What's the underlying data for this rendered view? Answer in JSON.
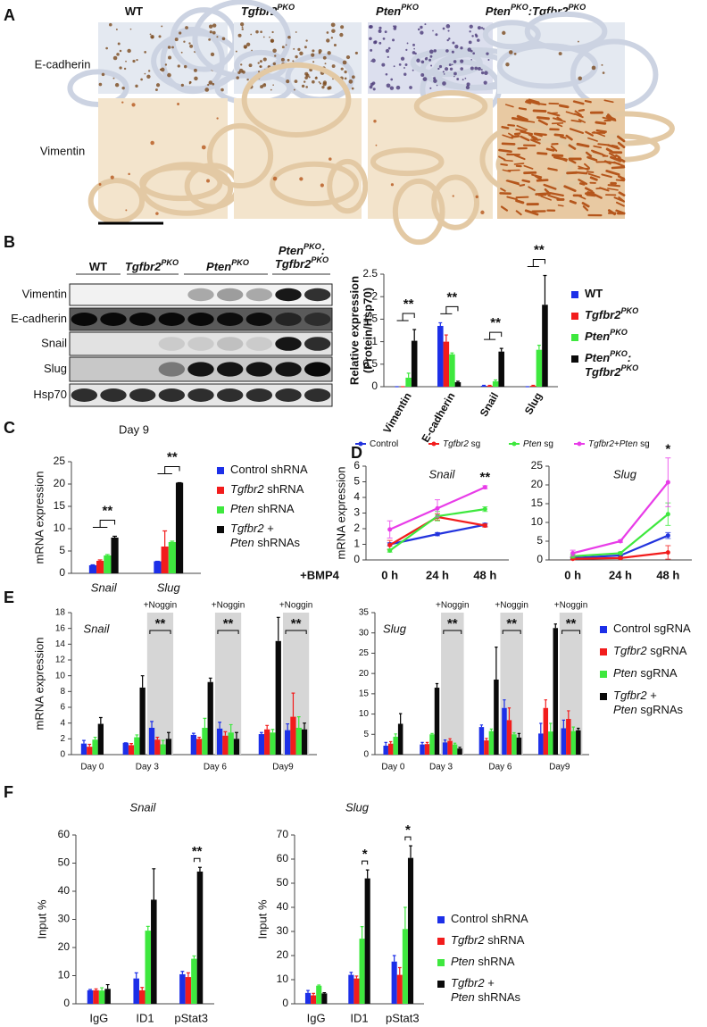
{
  "figure": {
    "panels": [
      "A",
      "B",
      "C",
      "D",
      "E",
      "F"
    ],
    "micrographs": {
      "columns": [
        [
          {
            "t": "WT"
          }
        ],
        [
          {
            "t": "Tgfbr2",
            "i": true
          },
          {
            "t": "PKO",
            "sup": true,
            "i": true
          }
        ],
        [
          {
            "t": "Pten",
            "i": true
          },
          {
            "t": "PKO",
            "sup": true,
            "i": true
          }
        ],
        [
          {
            "t": "Pten",
            "i": true
          },
          {
            "t": "PKO",
            "sup": true,
            "i": true
          },
          {
            "t": ":Tgfbr2",
            "i": true
          },
          {
            "t": "PKO",
            "sup": true,
            "i": true
          }
        ]
      ],
      "rows": [
        "E-cadherin",
        "Vimentin"
      ]
    },
    "blot": {
      "columns": [
        [
          {
            "t": "WT"
          }
        ],
        [
          {
            "t": "Tgfbr2",
            "i": true
          },
          {
            "t": "PKO",
            "sup": true,
            "i": true
          }
        ],
        [
          {
            "t": "Pten",
            "i": true
          },
          {
            "t": "PKO",
            "sup": true,
            "i": true
          }
        ],
        [
          {
            "t": "Pten",
            "i": true
          },
          {
            "t": "PKO",
            "sup": true,
            "i": true
          },
          {
            "t": ":",
            "i": true
          },
          {
            "t": "Tgfbr2",
            "i": true,
            "nl": true
          },
          {
            "t": "PKO",
            "sup": true,
            "i": true
          }
        ]
      ],
      "rows": [
        "Vimentin",
        "E-cadherin",
        "Snail",
        "Slug",
        "Hsp70"
      ]
    }
  },
  "chart_data": [
    {
      "type": "bar",
      "ylabel": [
        "Relative expression",
        "(Protein/Hsp70)"
      ],
      "categories": [
        "Vimentin",
        "E-cadherin",
        "Snail",
        "Slug"
      ],
      "ylim": [
        0,
        2.5
      ],
      "yticks": [
        0,
        0.5,
        1,
        1.5,
        2,
        2.5
      ],
      "series": [
        {
          "name": [
            {
              "t": "WT"
            }
          ],
          "color": "#1c2fe8",
          "values": [
            0,
            1.35,
            0.02,
            0
          ],
          "errors": [
            0,
            0.07,
            0.01,
            0
          ]
        },
        {
          "name": [
            {
              "t": "Tgfbr2",
              "i": true
            },
            {
              "t": "PKO",
              "sup": true,
              "i": true
            }
          ],
          "color": "#f21c1c",
          "values": [
            0,
            1.0,
            0.02,
            0.02
          ],
          "errors": [
            0,
            0.15,
            0.01,
            0.01
          ]
        },
        {
          "name": [
            {
              "t": "Pten",
              "i": true
            },
            {
              "t": "PKO",
              "sup": true,
              "i": true
            }
          ],
          "color": "#3ee83e",
          "values": [
            0.2,
            0.72,
            0.12,
            0.82
          ],
          "errors": [
            0.1,
            0.03,
            0.03,
            0.1
          ]
        },
        {
          "name": [
            {
              "t": "Pten",
              "i": true
            },
            {
              "t": "PKO",
              "sup": true,
              "i": true
            },
            {
              "t": ":",
              "i": true
            },
            {
              "t": "Tgfbr2",
              "i": true,
              "nl": true
            },
            {
              "t": "PKO",
              "sup": true,
              "i": true
            }
          ],
          "color": "#0a0a0a",
          "values": [
            1.02,
            0.1,
            0.78,
            1.82
          ],
          "errors": [
            0.25,
            0.02,
            0.07,
            0.65
          ]
        }
      ],
      "annotations": [
        {
          "text": "**",
          "category": 0
        },
        {
          "text": "**",
          "category": 1
        },
        {
          "text": "**",
          "category": 2
        },
        {
          "text": "**",
          "category": 3
        }
      ]
    },
    {
      "type": "bar",
      "title": "Day 9",
      "ylabel": "mRNA expression",
      "categories": [
        "Snail",
        "Slug"
      ],
      "ylim": [
        0,
        25
      ],
      "yticks": [
        0,
        5,
        10,
        15,
        20,
        25
      ],
      "series": [
        {
          "name": [
            {
              "t": "Control shRNA"
            }
          ],
          "color": "#1c2fe8",
          "values": [
            1.8,
            2.7
          ],
          "errors": [
            0.1,
            0
          ]
        },
        {
          "name": [
            {
              "t": "Tgfbr2",
              "i": true
            },
            {
              "t": " shRNA"
            }
          ],
          "color": "#f21c1c",
          "values": [
            2.8,
            6.0
          ],
          "errors": [
            0.2,
            3.5
          ]
        },
        {
          "name": [
            {
              "t": "Pten",
              "i": true
            },
            {
              "t": " shRNA"
            }
          ],
          "color": "#3ee83e",
          "values": [
            4.0,
            7.0
          ],
          "errors": [
            0.2,
            0.2
          ]
        },
        {
          "name": [
            {
              "t": "Tgfbr2",
              "i": true
            },
            {
              "t": " +"
            },
            {
              "t": "Pten",
              "i": true,
              "nl": true
            },
            {
              "t": " shRNAs"
            }
          ],
          "color": "#0a0a0a",
          "values": [
            8.0,
            20.3
          ],
          "errors": [
            0.3,
            0
          ]
        }
      ],
      "annotations": [
        {
          "text": "**",
          "category": 0
        },
        {
          "text": "**",
          "category": 1
        }
      ]
    },
    {
      "type": "line",
      "title": "Snail",
      "ylabel": "mRNA expression",
      "xlabel": "+BMP4",
      "categories": [
        "0 h",
        "24 h",
        "48 h"
      ],
      "ylim": [
        0,
        6
      ],
      "yticks": [
        0,
        1,
        2,
        3,
        4,
        5,
        6
      ],
      "series": [
        {
          "name": [
            {
              "t": "Control"
            }
          ],
          "color": "#2233dd",
          "values": [
            1.0,
            1.65,
            2.25
          ],
          "errors": [
            0.1,
            0.1,
            0.1
          ]
        },
        {
          "name": [
            {
              "t": "Tgfbr2",
              "i": true
            },
            {
              "t": " sg"
            }
          ],
          "color": "#f21c1c",
          "values": [
            0.95,
            2.75,
            2.2
          ],
          "errors": [
            0.3,
            0.2,
            0.1
          ]
        },
        {
          "name": [
            {
              "t": "Pten",
              "i": true
            },
            {
              "t": " sg"
            }
          ],
          "color": "#3ee83e",
          "values": [
            0.6,
            2.8,
            3.25
          ],
          "errors": [
            0.1,
            0.3,
            0.15
          ]
        },
        {
          "name": [
            {
              "t": "Tgfbr2+Pten",
              "i": true
            },
            {
              "t": " sg"
            }
          ],
          "color": "#e83ce8",
          "values": [
            1.95,
            3.3,
            4.65
          ],
          "errors": [
            0.55,
            0.55,
            0.1
          ]
        }
      ],
      "annotations": [
        {
          "text": "**",
          "category": 2
        }
      ]
    },
    {
      "type": "line",
      "title": "Slug",
      "categories": [
        "0 h",
        "24 h",
        "48 h"
      ],
      "ylim": [
        0,
        25
      ],
      "yticks": [
        0,
        5,
        10,
        15,
        20,
        25
      ],
      "series": [
        {
          "color": "#2233dd",
          "values": [
            0.5,
            1.2,
            6.5
          ],
          "errors": [
            0.3,
            0.2,
            0.8
          ]
        },
        {
          "color": "#f21c1c",
          "values": [
            0.3,
            0.5,
            2.0
          ],
          "errors": [
            0.3,
            0.2,
            1.8
          ]
        },
        {
          "color": "#3ee83e",
          "values": [
            1.0,
            1.8,
            12.2
          ],
          "errors": [
            0.5,
            0.3,
            3
          ]
        },
        {
          "color": "#e83ce8",
          "values": [
            1.8,
            5,
            20.7
          ],
          "errors": [
            0.8,
            0.3,
            6.5
          ]
        }
      ],
      "annotations": [
        {
          "text": "*",
          "category": 2
        }
      ]
    },
    {
      "type": "bar",
      "title": "Snail",
      "ylabel": "mRNA expression",
      "categories": [
        "Day 0",
        "Day 3",
        null,
        "Day 6",
        null,
        "Day9",
        null
      ],
      "ylim": [
        0,
        18
      ],
      "yticks": [
        0,
        2,
        4,
        6,
        8,
        10,
        12,
        14,
        16,
        18
      ],
      "series": [
        {
          "color": "#1c2fe8",
          "values": [
            1.4,
            1.5,
            3.4,
            2.5,
            3.3,
            2.6,
            3.1
          ],
          "errors": [
            0.4,
            0,
            0.8,
            0.2,
            0.8,
            0.2,
            0.8
          ]
        },
        {
          "color": "#f21c1c",
          "values": [
            1.0,
            1.2,
            1.9,
            2.0,
            2.4,
            3.2,
            4.8
          ],
          "errors": [
            0.3,
            0.2,
            0.3,
            0.2,
            0.5,
            0.5,
            3.0
          ]
        },
        {
          "color": "#3ee83e",
          "values": [
            1.9,
            2.2,
            1.3,
            3.4,
            2.8,
            2.8,
            3.4
          ],
          "errors": [
            0.3,
            0.3,
            0.5,
            1.2,
            1.0,
            0.4,
            1.4
          ]
        },
        {
          "color": "#0a0a0a",
          "values": [
            3.9,
            8.5,
            2.0,
            9.2,
            2.0,
            14.4,
            3.2
          ],
          "errors": [
            0.8,
            1.5,
            0.8,
            0.5,
            0.8,
            3.0,
            0.8
          ]
        }
      ],
      "shaded": [
        {
          "category": 2,
          "label": "+Noggin",
          "mark": "**"
        },
        {
          "category": 4,
          "label": "+Noggin",
          "mark": "**"
        },
        {
          "category": 6,
          "label": "+Noggin",
          "mark": "**"
        }
      ]
    },
    {
      "type": "bar",
      "title": "Slug",
      "categories": [
        "Day 0",
        "Day 3",
        null,
        "Day 6",
        null,
        "Day9",
        null
      ],
      "ylim": [
        0,
        35
      ],
      "yticks": [
        0,
        5,
        10,
        15,
        20,
        25,
        30,
        35
      ],
      "series": [
        {
          "name": [
            {
              "t": "Control sgRNA"
            }
          ],
          "color": "#1c2fe8",
          "values": [
            2.2,
            2.5,
            3.0,
            6.8,
            11.5,
            5.2,
            6.5
          ],
          "errors": [
            0.8,
            0.5,
            0.6,
            0.5,
            2,
            2.5,
            2
          ]
        },
        {
          "name": [
            {
              "t": "Tgfbr2",
              "i": true
            },
            {
              "t": " sgRNA"
            }
          ],
          "color": "#f21c1c",
          "values": [
            2.7,
            2.6,
            3.4,
            3.5,
            8.5,
            11.5,
            8.8
          ],
          "errors": [
            0.5,
            0.4,
            0.5,
            0.5,
            3,
            2,
            2
          ]
        },
        {
          "name": [
            {
              "t": "Pten",
              "i": true
            },
            {
              "t": " sgRNA"
            }
          ],
          "color": "#3ee83e",
          "values": [
            4.4,
            5.0,
            2.5,
            5.8,
            5.0,
            5.7,
            5.8
          ],
          "errors": [
            0.7,
            0.2,
            0.3,
            0.5,
            0.4,
            2,
            1
          ]
        },
        {
          "name": [
            {
              "t": "Tgfbr2",
              "i": true
            },
            {
              "t": " +"
            },
            {
              "t": "Pten",
              "i": true,
              "nl": true
            },
            {
              "t": " sgRNAs"
            }
          ],
          "color": "#0a0a0a",
          "values": [
            7.6,
            16.5,
            1.5,
            18.5,
            4.2,
            31.2,
            6.0
          ],
          "errors": [
            2.5,
            1.0,
            0.3,
            8,
            1,
            1,
            0.5
          ]
        }
      ],
      "shaded": [
        {
          "category": 2,
          "label": "+Noggin",
          "mark": "**"
        },
        {
          "category": 4,
          "label": "+Noggin",
          "mark": "**"
        },
        {
          "category": 6,
          "label": "+Noggin",
          "mark": "**"
        }
      ]
    },
    {
      "type": "bar",
      "title": "Snail",
      "ylabel": "Input %",
      "categories": [
        "IgG",
        "ID1",
        "pStat3"
      ],
      "ylim": [
        0,
        60
      ],
      "yticks": [
        0,
        10,
        20,
        30,
        40,
        50,
        60
      ],
      "series": [
        {
          "color": "#1c2fe8",
          "values": [
            4.8,
            9.0,
            10.5
          ],
          "errors": [
            0.3,
            2,
            1
          ]
        },
        {
          "color": "#f21c1c",
          "values": [
            4.8,
            4.8,
            9.5
          ],
          "errors": [
            0.5,
            1,
            1.5
          ]
        },
        {
          "color": "#3ee83e",
          "values": [
            4.7,
            26,
            16
          ],
          "errors": [
            1,
            1.5,
            1
          ]
        },
        {
          "color": "#0a0a0a",
          "values": [
            5.3,
            37,
            47
          ],
          "errors": [
            1.5,
            11,
            1.5
          ]
        }
      ],
      "annotations": [
        {
          "text": "**",
          "category": 2
        }
      ]
    },
    {
      "type": "bar",
      "title": "Slug",
      "ylabel": "Input %",
      "categories": [
        "IgG",
        "ID1",
        "pStat3"
      ],
      "ylim": [
        0,
        70
      ],
      "yticks": [
        0,
        10,
        20,
        30,
        40,
        50,
        60,
        70
      ],
      "series": [
        {
          "name": [
            {
              "t": "Control shRNA"
            }
          ],
          "color": "#1c2fe8",
          "values": [
            4.5,
            12,
            17.5
          ],
          "errors": [
            1,
            1,
            2.5
          ]
        },
        {
          "name": [
            {
              "t": "Tgfbr2",
              "i": true
            },
            {
              "t": " shRNA"
            }
          ],
          "color": "#f21c1c",
          "values": [
            3.5,
            10.5,
            12
          ],
          "errors": [
            0.8,
            1,
            3
          ]
        },
        {
          "name": [
            {
              "t": "Pten",
              "i": true
            },
            {
              "t": " shRNA"
            }
          ],
          "color": "#3ee83e",
          "values": [
            7.5,
            27,
            31
          ],
          "errors": [
            0.3,
            5,
            9
          ]
        },
        {
          "name": [
            {
              "t": "Tgfbr2",
              "i": true
            },
            {
              "t": " +"
            },
            {
              "t": "Pten",
              "i": true,
              "nl": true
            },
            {
              "t": " shRNAs"
            }
          ],
          "color": "#0a0a0a",
          "values": [
            4.3,
            52,
            60.5
          ],
          "errors": [
            0.3,
            3.5,
            5
          ]
        }
      ],
      "annotations": [
        {
          "text": "*",
          "category": 1
        },
        {
          "text": "*",
          "category": 2
        }
      ]
    }
  ]
}
